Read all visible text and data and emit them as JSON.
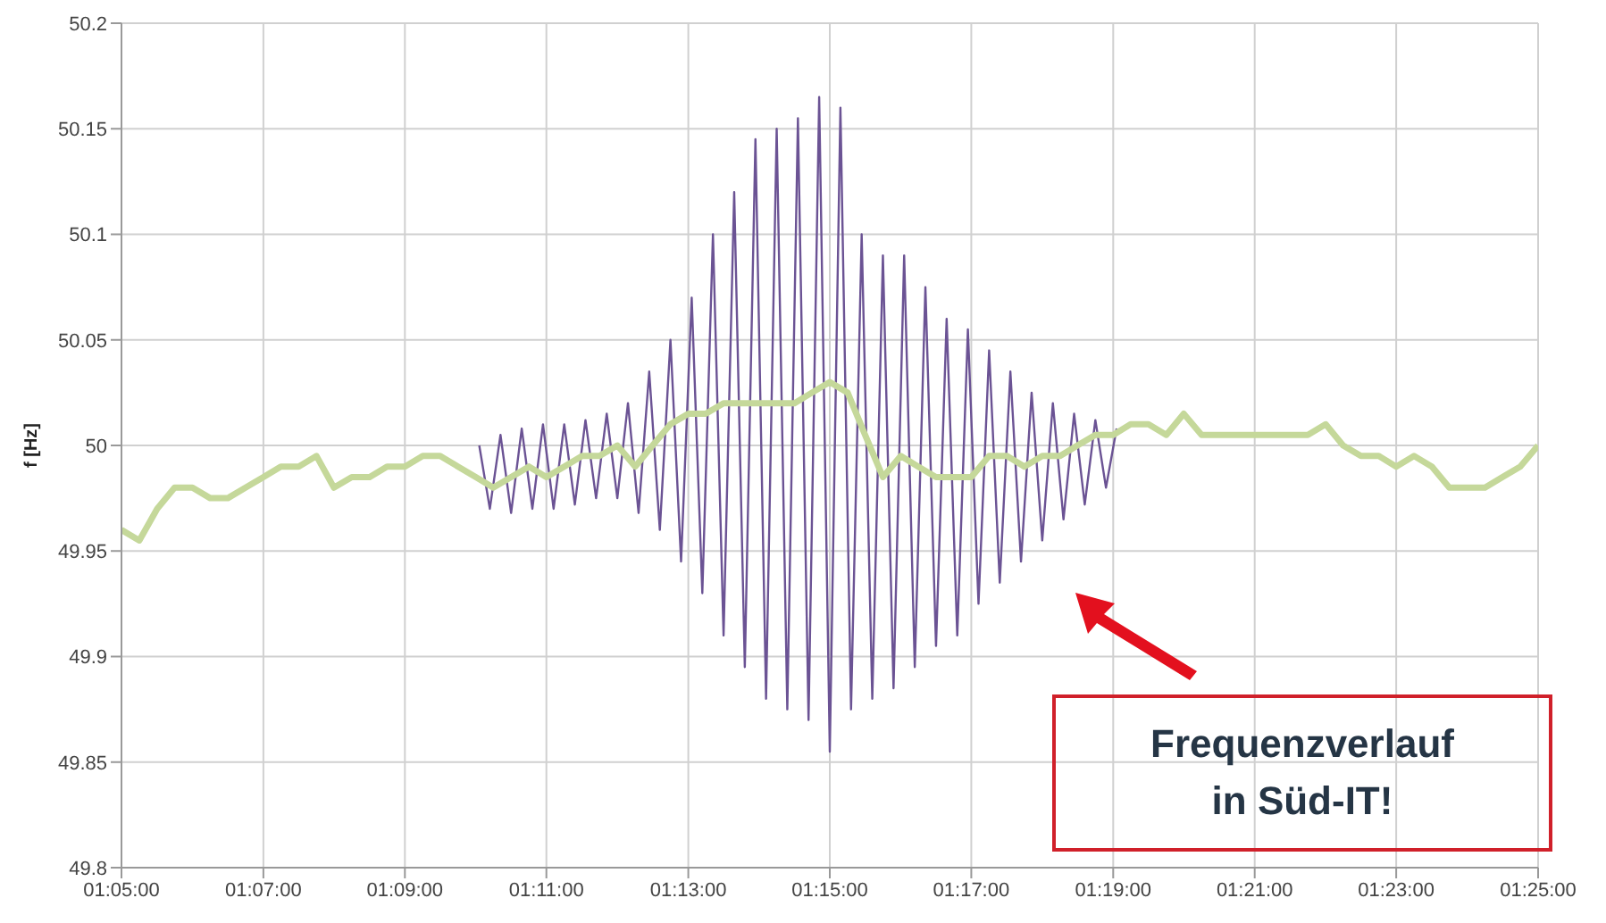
{
  "chart_data": {
    "type": "line",
    "ylabel": "f [Hz]",
    "ylim": [
      49.8,
      50.2
    ],
    "yticks": [
      49.8,
      49.85,
      49.9,
      49.95,
      50,
      50.05,
      50.1,
      50.15,
      50.2
    ],
    "xlim": [
      1.0833,
      1.4167
    ],
    "xticks": [
      {
        "value": 1.0833,
        "label": "01:05:00"
      },
      {
        "value": 1.1167,
        "label": "01:07:00"
      },
      {
        "value": 1.15,
        "label": "01:09:00"
      },
      {
        "value": 1.1833,
        "label": "01:11:00"
      },
      {
        "value": 1.2167,
        "label": "01:13:00"
      },
      {
        "value": 1.25,
        "label": "01:15:00"
      },
      {
        "value": 1.2833,
        "label": "01:17:00"
      },
      {
        "value": 1.3167,
        "label": "01:19:00"
      },
      {
        "value": 1.35,
        "label": "01:21:00"
      },
      {
        "value": 1.3833,
        "label": "01:23:00"
      },
      {
        "value": 1.4167,
        "label": "01:25:00"
      }
    ],
    "grid": true,
    "marker": "none",
    "line_style": "solid",
    "series": [
      {
        "color": "#6b5394",
        "x": [
          1.1675,
          1.17,
          1.1725,
          1.175,
          1.1775,
          1.18,
          1.1825,
          1.185,
          1.1875,
          1.19,
          1.1925,
          1.195,
          1.1975,
          1.2,
          1.2025,
          1.205,
          1.2075,
          1.21,
          1.2125,
          1.215,
          1.2175,
          1.22,
          1.2225,
          1.225,
          1.2275,
          1.23,
          1.2325,
          1.235,
          1.2375,
          1.24,
          1.2425,
          1.245,
          1.2475,
          1.25,
          1.2525,
          1.255,
          1.2575,
          1.26,
          1.2625,
          1.265,
          1.2675,
          1.27,
          1.2725,
          1.275,
          1.2775,
          1.28,
          1.2825,
          1.285,
          1.2875,
          1.29,
          1.2925,
          1.295,
          1.2975,
          1.3,
          1.3025,
          1.305,
          1.3075,
          1.31,
          1.3125,
          1.315,
          1.3175
        ],
        "values": [
          50.0,
          49.97,
          50.005,
          49.968,
          50.008,
          49.97,
          50.01,
          49.97,
          50.01,
          49.972,
          50.012,
          49.975,
          50.015,
          49.975,
          50.02,
          49.968,
          50.035,
          49.96,
          50.05,
          49.945,
          50.07,
          49.93,
          50.1,
          49.91,
          50.12,
          49.895,
          50.145,
          49.88,
          50.15,
          49.875,
          50.155,
          49.87,
          50.165,
          49.855,
          50.16,
          49.875,
          50.1,
          49.88,
          50.09,
          49.885,
          50.09,
          49.895,
          50.075,
          49.905,
          50.06,
          49.91,
          50.055,
          49.925,
          50.045,
          49.935,
          50.035,
          49.945,
          50.025,
          49.955,
          50.02,
          49.965,
          50.015,
          49.972,
          50.012,
          49.98,
          50.008
        ]
      },
      {
        "color": "#c5d89a",
        "x": [
          1.0833,
          1.0875,
          1.0917,
          1.0958,
          1.1,
          1.1042,
          1.1083,
          1.1125,
          1.1167,
          1.1208,
          1.125,
          1.1292,
          1.1333,
          1.1375,
          1.1417,
          1.1458,
          1.15,
          1.1542,
          1.1583,
          1.1625,
          1.1667,
          1.1708,
          1.175,
          1.1792,
          1.1833,
          1.1875,
          1.1917,
          1.1958,
          1.2,
          1.2042,
          1.2083,
          1.2125,
          1.2167,
          1.2208,
          1.225,
          1.2292,
          1.2333,
          1.2375,
          1.2417,
          1.2458,
          1.25,
          1.2542,
          1.2583,
          1.2625,
          1.2667,
          1.2708,
          1.275,
          1.2792,
          1.2833,
          1.2875,
          1.2917,
          1.2958,
          1.3,
          1.3042,
          1.3083,
          1.3125,
          1.3167,
          1.3208,
          1.325,
          1.3292,
          1.3333,
          1.3375,
          1.3417,
          1.3458,
          1.35,
          1.3542,
          1.3583,
          1.3625,
          1.3667,
          1.3708,
          1.375,
          1.3792,
          1.3833,
          1.3875,
          1.3917,
          1.3958,
          1.4,
          1.4042,
          1.4083,
          1.4125,
          1.4167
        ],
        "values": [
          49.96,
          49.955,
          49.97,
          49.98,
          49.98,
          49.975,
          49.975,
          49.98,
          49.985,
          49.99,
          49.99,
          49.995,
          49.98,
          49.985,
          49.985,
          49.99,
          49.99,
          49.995,
          49.995,
          49.99,
          49.985,
          49.98,
          49.985,
          49.99,
          49.985,
          49.99,
          49.995,
          49.995,
          50.0,
          49.99,
          50.0,
          50.01,
          50.015,
          50.015,
          50.02,
          50.02,
          50.02,
          50.02,
          50.02,
          50.025,
          50.03,
          50.025,
          50.005,
          49.985,
          49.995,
          49.99,
          49.985,
          49.985,
          49.985,
          49.995,
          49.995,
          49.99,
          49.995,
          49.995,
          50.0,
          50.005,
          50.005,
          50.01,
          50.01,
          50.005,
          50.015,
          50.005,
          50.005,
          50.005,
          50.005,
          50.005,
          50.005,
          50.005,
          50.01,
          50.0,
          49.995,
          49.995,
          49.99,
          49.995,
          49.99,
          49.98,
          49.98,
          49.98,
          49.985,
          49.99,
          50.0
        ]
      }
    ],
    "annotations": [
      "Frequenzverlauf in Süd-IT!"
    ]
  }
}
